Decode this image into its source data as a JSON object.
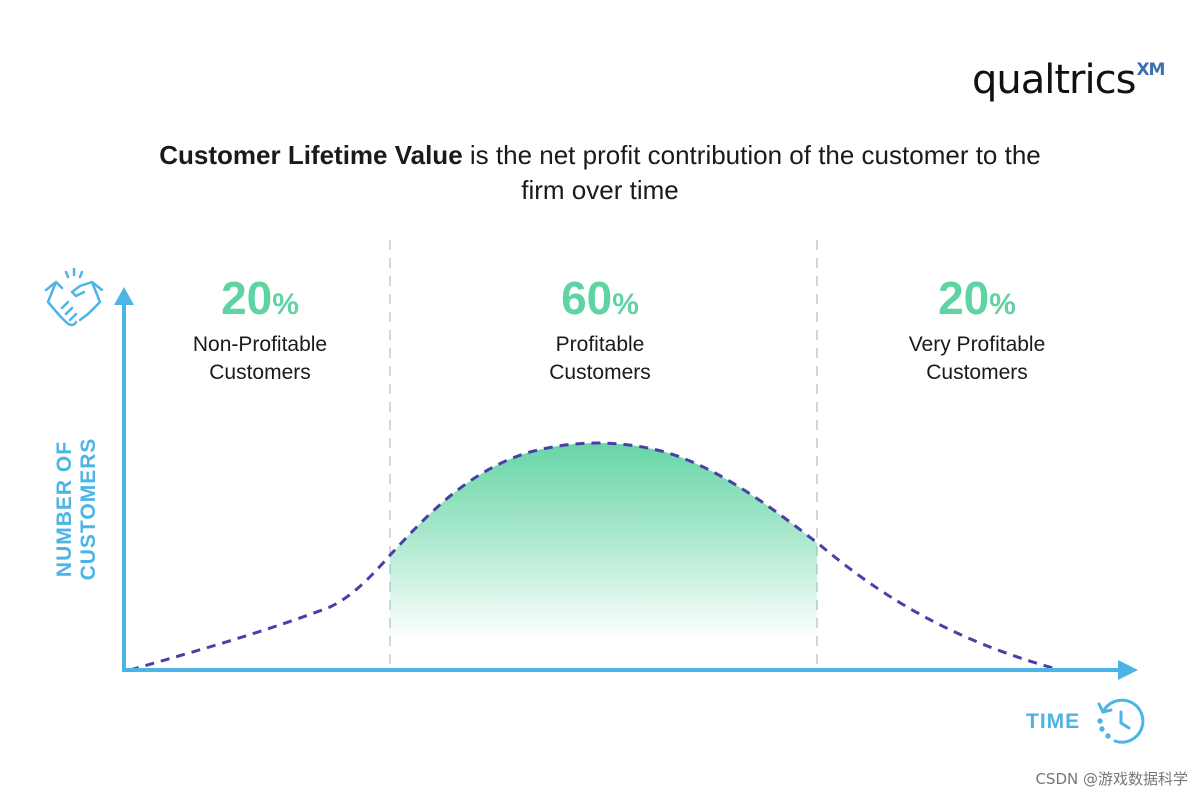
{
  "brand": {
    "logo_text": "qualtrics",
    "logo_suffix": "XM"
  },
  "headline": {
    "bold": "Customer Lifetime Value",
    "rest": " is the net profit contribution of the customer to the firm over time"
  },
  "segments": [
    {
      "percent": "20",
      "sign": "%",
      "label": "Non-Profitable\nCustomers"
    },
    {
      "percent": "60",
      "sign": "%",
      "label": "Profitable\nCustomers"
    },
    {
      "percent": "20",
      "sign": "%",
      "label": "Very Profitable\nCustomers"
    }
  ],
  "axes": {
    "y_label": "NUMBER OF CUSTOMERS",
    "x_label": "TIME"
  },
  "icons": {
    "y_axis": "handshake-icon",
    "x_axis": "clock-icon"
  },
  "colors": {
    "accent_green": "#5fd3a1",
    "axis_blue": "#4cb4e6",
    "curve_purple": "#4a3fa8",
    "divider_gray": "#c8c8c8"
  },
  "watermark": "CSDN @游戏数据科学"
}
